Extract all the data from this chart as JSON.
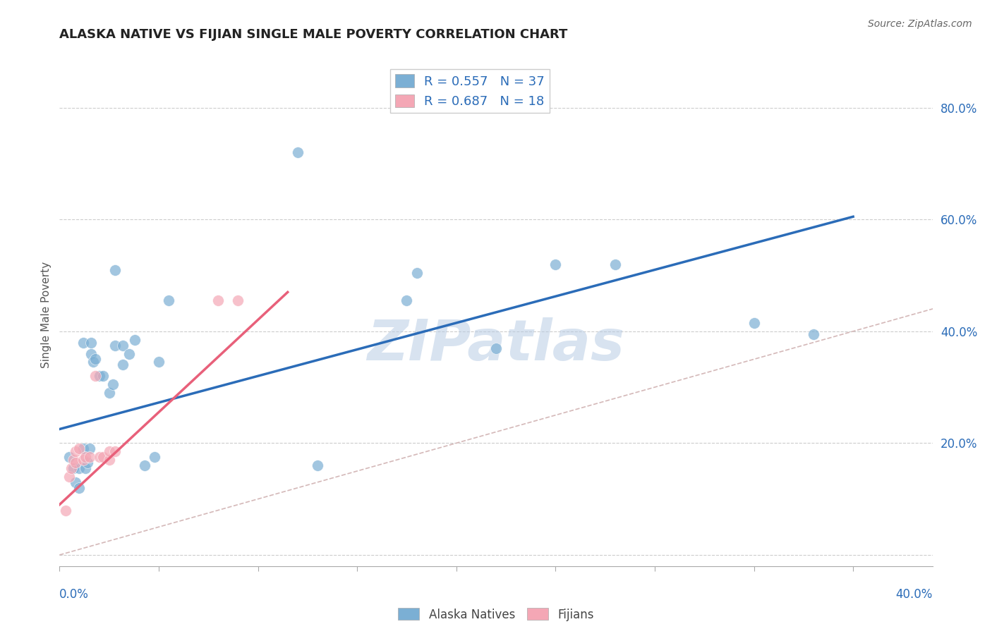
{
  "title": "ALASKA NATIVE VS FIJIAN SINGLE MALE POVERTY CORRELATION CHART",
  "source": "Source: ZipAtlas.com",
  "ylabel": "Single Male Poverty",
  "ytick_labels": [
    "",
    "20.0%",
    "40.0%",
    "60.0%",
    "80.0%"
  ],
  "xlim": [
    0.0,
    0.44
  ],
  "ylim": [
    -0.02,
    0.88
  ],
  "alaska_R": 0.557,
  "alaska_N": 37,
  "fijian_R": 0.687,
  "fijian_N": 18,
  "alaska_color": "#7BAFD4",
  "fijian_color": "#F4A7B5",
  "trendline_alaska_color": "#2B6CB8",
  "trendline_fijian_color": "#E8607A",
  "diagonal_color": "#D4B8B8",
  "watermark": "ZIPatlas",
  "watermark_color": "#B8CCE4",
  "alaska_points": [
    [
      0.005,
      0.175
    ],
    [
      0.007,
      0.155
    ],
    [
      0.008,
      0.13
    ],
    [
      0.01,
      0.12
    ],
    [
      0.01,
      0.155
    ],
    [
      0.012,
      0.19
    ],
    [
      0.012,
      0.38
    ],
    [
      0.013,
      0.155
    ],
    [
      0.014,
      0.165
    ],
    [
      0.015,
      0.19
    ],
    [
      0.016,
      0.36
    ],
    [
      0.016,
      0.38
    ],
    [
      0.017,
      0.345
    ],
    [
      0.018,
      0.35
    ],
    [
      0.02,
      0.32
    ],
    [
      0.022,
      0.32
    ],
    [
      0.025,
      0.29
    ],
    [
      0.027,
      0.305
    ],
    [
      0.028,
      0.51
    ],
    [
      0.028,
      0.375
    ],
    [
      0.032,
      0.34
    ],
    [
      0.032,
      0.375
    ],
    [
      0.035,
      0.36
    ],
    [
      0.038,
      0.385
    ],
    [
      0.043,
      0.16
    ],
    [
      0.048,
      0.175
    ],
    [
      0.05,
      0.345
    ],
    [
      0.055,
      0.455
    ],
    [
      0.12,
      0.72
    ],
    [
      0.13,
      0.16
    ],
    [
      0.175,
      0.455
    ],
    [
      0.18,
      0.505
    ],
    [
      0.22,
      0.37
    ],
    [
      0.25,
      0.52
    ],
    [
      0.28,
      0.52
    ],
    [
      0.35,
      0.415
    ],
    [
      0.38,
      0.395
    ]
  ],
  "fijian_points": [
    [
      0.003,
      0.08
    ],
    [
      0.005,
      0.14
    ],
    [
      0.006,
      0.155
    ],
    [
      0.007,
      0.17
    ],
    [
      0.008,
      0.165
    ],
    [
      0.008,
      0.185
    ],
    [
      0.01,
      0.19
    ],
    [
      0.012,
      0.17
    ],
    [
      0.013,
      0.175
    ],
    [
      0.015,
      0.175
    ],
    [
      0.018,
      0.32
    ],
    [
      0.02,
      0.175
    ],
    [
      0.022,
      0.175
    ],
    [
      0.025,
      0.17
    ],
    [
      0.025,
      0.185
    ],
    [
      0.028,
      0.185
    ],
    [
      0.08,
      0.455
    ],
    [
      0.09,
      0.455
    ]
  ],
  "alaska_trend_x": [
    0.0,
    0.4
  ],
  "alaska_trend_y": [
    0.225,
    0.605
  ],
  "fijian_trend_x": [
    0.0,
    0.115
  ],
  "fijian_trend_y": [
    0.09,
    0.47
  ]
}
